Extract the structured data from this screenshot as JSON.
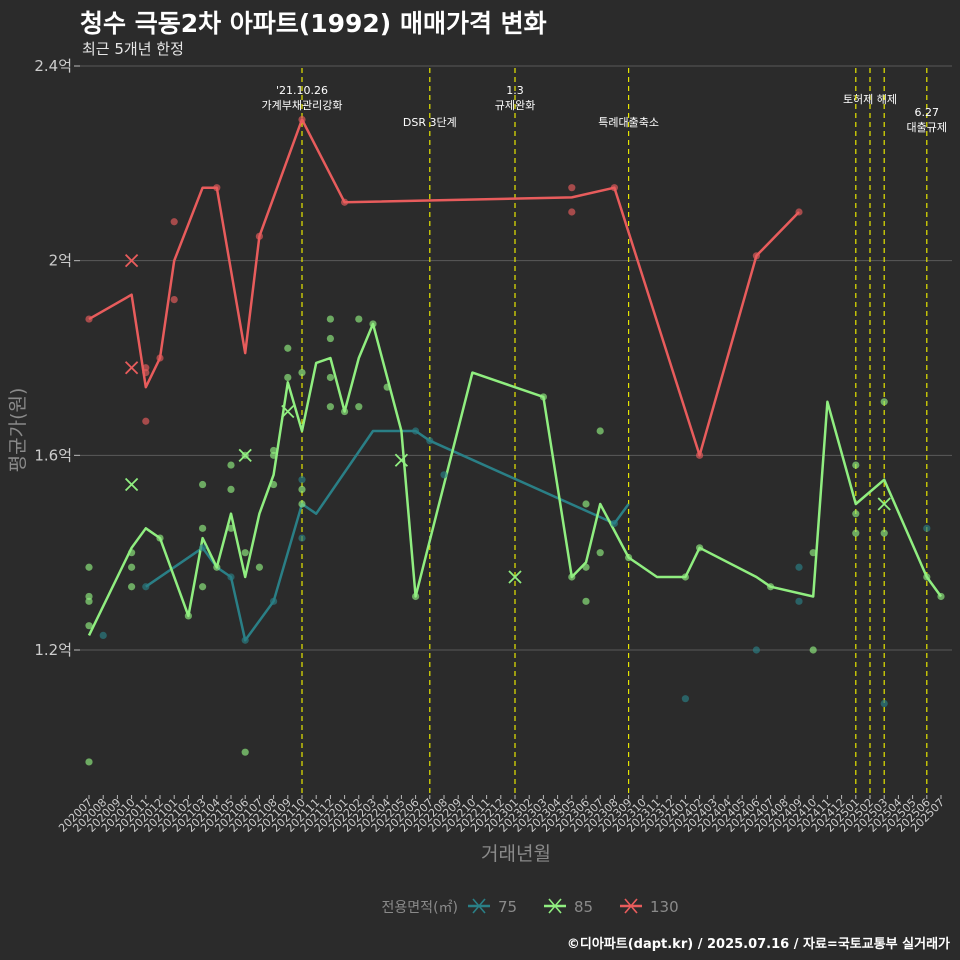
{
  "title": "청수 극동2차 아파트(1992) 매매가격 변화",
  "subtitle": "최근 5개년 한정",
  "caption": "©디아파트(dapt.kr) / 2025.07.16 / 자료=국토교통부 실거래가",
  "chart_data": {
    "type": "line",
    "xlabel": "거래년월",
    "ylabel": "평균가(원)",
    "legend_title": "전용면적(㎡)",
    "legend_position": "bottom",
    "grid": true,
    "ylim": [
      0.9,
      2.4
    ],
    "y_ticks": [
      1.2,
      1.6,
      2.0,
      2.4
    ],
    "y_tick_labels": [
      "1.2억",
      "1.6억",
      "2억",
      "2.4억"
    ],
    "categories": [
      "202007",
      "202008",
      "202009",
      "202010",
      "202011",
      "202012",
      "202101",
      "202102",
      "202103",
      "202104",
      "202105",
      "202106",
      "202107",
      "202108",
      "202109",
      "202110",
      "202111",
      "202112",
      "202201",
      "202202",
      "202203",
      "202204",
      "202205",
      "202206",
      "202207",
      "202208",
      "202209",
      "202210",
      "202211",
      "202212",
      "202301",
      "202302",
      "202303",
      "202304",
      "202305",
      "202306",
      "202307",
      "202308",
      "202309",
      "202310",
      "202311",
      "202312",
      "202401",
      "202402",
      "202403",
      "202404",
      "202405",
      "202406",
      "202407",
      "202408",
      "202409",
      "202410",
      "202411",
      "202412",
      "202501",
      "202502",
      "202503",
      "202504",
      "202505",
      "202506",
      "202507"
    ],
    "colors": {
      "75": "#2a7f86",
      "85": "#90ee80",
      "130": "#e85c5c",
      "event": "#e6e600",
      "grid": "#5a5a5a",
      "text": "#cccccc",
      "axis_title": "#8a8a8a"
    },
    "series": [
      {
        "name": "75",
        "color": "#2a7f86",
        "line": [
          [
            "202011",
            1.33
          ],
          [
            "202103",
            1.41
          ],
          [
            "202104",
            1.37
          ],
          [
            "202105",
            1.35
          ],
          [
            "202106",
            1.22
          ],
          [
            "202108",
            1.3
          ],
          [
            "202110",
            1.5
          ],
          [
            "202111",
            1.48
          ],
          [
            "202203",
            1.65
          ],
          [
            "202206",
            1.65
          ],
          [
            "202207",
            1.63
          ],
          [
            "202308",
            1.46
          ],
          [
            "202309",
            1.5
          ]
        ],
        "points": [
          [
            "202008",
            1.23
          ],
          [
            "202011",
            1.33
          ],
          [
            "202103",
            1.41
          ],
          [
            "202105",
            1.35
          ],
          [
            "202106",
            1.22
          ],
          [
            "202108",
            1.3
          ],
          [
            "202110",
            1.55
          ],
          [
            "202110",
            1.43
          ],
          [
            "202206",
            1.65
          ],
          [
            "202207",
            1.63
          ],
          [
            "202208",
            1.56
          ],
          [
            "202308",
            1.46
          ],
          [
            "202409",
            1.37
          ],
          [
            "202409",
            1.3
          ],
          [
            "202406",
            1.2
          ],
          [
            "202401",
            1.1
          ],
          [
            "202503",
            1.09
          ],
          [
            "202506",
            1.45
          ]
        ],
        "cross_points": []
      },
      {
        "name": "85",
        "color": "#90ee80",
        "line": [
          [
            "202007",
            1.23
          ],
          [
            "202010",
            1.41
          ],
          [
            "202011",
            1.45
          ],
          [
            "202012",
            1.43
          ],
          [
            "202102",
            1.27
          ],
          [
            "202103",
            1.43
          ],
          [
            "202104",
            1.37
          ],
          [
            "202105",
            1.48
          ],
          [
            "202106",
            1.35
          ],
          [
            "202107",
            1.48
          ],
          [
            "202108",
            1.56
          ],
          [
            "202109",
            1.75
          ],
          [
            "202110",
            1.65
          ],
          [
            "202111",
            1.79
          ],
          [
            "202112",
            1.8
          ],
          [
            "202201",
            1.69
          ],
          [
            "202202",
            1.8
          ],
          [
            "202203",
            1.87
          ],
          [
            "202205",
            1.65
          ],
          [
            "202206",
            1.31
          ],
          [
            "202210",
            1.77
          ],
          [
            "202303",
            1.72
          ],
          [
            "202305",
            1.35
          ],
          [
            "202306",
            1.38
          ],
          [
            "202307",
            1.5
          ],
          [
            "202309",
            1.39
          ],
          [
            "202311",
            1.35
          ],
          [
            "202313",
            1.35
          ],
          [
            "202314",
            1.41
          ],
          [
            "202318",
            1.35
          ],
          [
            "202319",
            1.33
          ],
          [
            "202322",
            1.31
          ],
          [
            "202323",
            1.71
          ],
          [
            "202501",
            1.5
          ],
          [
            "202503",
            1.55
          ],
          [
            "202506",
            1.35
          ],
          [
            "202507",
            1.31
          ]
        ],
        "points": [
          [
            "202007",
            1.37
          ],
          [
            "202007",
            1.31
          ],
          [
            "202007",
            1.3
          ],
          [
            "202007",
            1.25
          ],
          [
            "202007",
            0.97
          ],
          [
            "202010",
            1.4
          ],
          [
            "202010",
            1.37
          ],
          [
            "202010",
            1.33
          ],
          [
            "202012",
            1.43
          ],
          [
            "202102",
            1.27
          ],
          [
            "202103",
            1.45
          ],
          [
            "202103",
            1.54
          ],
          [
            "202103",
            1.33
          ],
          [
            "202104",
            1.37
          ],
          [
            "202105",
            1.58
          ],
          [
            "202105",
            1.53
          ],
          [
            "202105",
            1.45
          ],
          [
            "202106",
            1.4
          ],
          [
            "202106",
            1.6
          ],
          [
            "202106",
            0.99
          ],
          [
            "202107",
            1.37
          ],
          [
            "202108",
            1.6
          ],
          [
            "202108",
            1.54
          ],
          [
            "202108",
            1.61
          ],
          [
            "202109",
            1.76
          ],
          [
            "202109",
            1.82
          ],
          [
            "202110",
            1.77
          ],
          [
            "202110",
            1.53
          ],
          [
            "202110",
            1.5
          ],
          [
            "202112",
            1.88
          ],
          [
            "202112",
            1.84
          ],
          [
            "202112",
            1.76
          ],
          [
            "202112",
            1.7
          ],
          [
            "202201",
            1.69
          ],
          [
            "202202",
            1.88
          ],
          [
            "202202",
            1.7
          ],
          [
            "202203",
            1.87
          ],
          [
            "202204",
            1.74
          ],
          [
            "202206",
            1.31
          ],
          [
            "202303",
            1.72
          ],
          [
            "202305",
            1.35
          ],
          [
            "202306",
            1.5
          ],
          [
            "202306",
            1.37
          ],
          [
            "202306",
            1.3
          ],
          [
            "202307",
            1.65
          ],
          [
            "202307",
            1.4
          ],
          [
            "202309",
            1.39
          ],
          [
            "202313",
            1.35
          ],
          [
            "202314",
            1.41
          ],
          [
            "202319",
            1.33
          ],
          [
            "202322",
            1.2
          ],
          [
            "202322",
            1.4
          ],
          [
            "202501",
            1.58
          ],
          [
            "202501",
            1.48
          ],
          [
            "202501",
            1.44
          ],
          [
            "202503",
            1.71
          ],
          [
            "202503",
            1.44
          ],
          [
            "202506",
            1.35
          ],
          [
            "202507",
            1.31
          ]
        ],
        "cross_points": [
          [
            "202010",
            1.54
          ],
          [
            "202106",
            1.6
          ],
          [
            "202109",
            1.69
          ],
          [
            "202205",
            1.59
          ],
          [
            "202301",
            1.35
          ],
          [
            "202503",
            1.5
          ]
        ]
      },
      {
        "name": "130",
        "color": "#e85c5c",
        "line": [
          [
            "202007",
            1.88
          ],
          [
            "202010",
            1.93
          ],
          [
            "202011",
            1.74
          ],
          [
            "202012",
            1.8
          ],
          [
            "202101",
            2.0
          ],
          [
            "202103",
            2.15
          ],
          [
            "202104",
            2.15
          ],
          [
            "202106",
            1.81
          ],
          [
            "202107",
            2.05
          ],
          [
            "202110",
            2.29
          ],
          [
            "202113",
            2.12
          ],
          [
            "202305",
            2.13
          ],
          [
            "202308",
            2.15
          ],
          [
            "202402",
            1.6
          ],
          [
            "202406",
            2.01
          ],
          [
            "202409",
            2.1
          ]
        ],
        "points": [
          [
            "202007",
            1.88
          ],
          [
            "202011",
            1.78
          ],
          [
            "202011",
            1.77
          ],
          [
            "202011",
            1.67
          ],
          [
            "202012",
            1.8
          ],
          [
            "202101",
            2.08
          ],
          [
            "202101",
            1.92
          ],
          [
            "202104",
            2.15
          ],
          [
            "202107",
            2.05
          ],
          [
            "202110",
            2.29
          ],
          [
            "202113",
            2.12
          ],
          [
            "202305",
            2.15
          ],
          [
            "202305",
            2.1
          ],
          [
            "202308",
            2.15
          ],
          [
            "202402",
            1.6
          ],
          [
            "202406",
            2.01
          ],
          [
            "202409",
            2.1
          ]
        ],
        "cross_points": [
          [
            "202010",
            2.0
          ],
          [
            "202010",
            1.78
          ]
        ]
      }
    ],
    "events": [
      {
        "at": "202110",
        "lines": [
          "'21.10.26",
          "가계부채관리강화"
        ],
        "row": 1
      },
      {
        "at": "202207",
        "lines": [
          "DSR 3단계"
        ],
        "row": 3
      },
      {
        "at": "202301",
        "lines": [
          "1.3",
          "규제완화"
        ],
        "row": 1
      },
      {
        "at": "202309",
        "lines": [
          "특례대출축소"
        ],
        "row": 3
      },
      {
        "at": "202502",
        "lines": [
          "토허제 해제"
        ],
        "row": 2
      },
      {
        "at": "202503",
        "lines": [],
        "row": 0
      },
      {
        "at": "202506",
        "lines": [
          "6.27",
          "대출규제"
        ],
        "row": 4
      },
      {
        "at": "202501",
        "lines": [],
        "row": 0
      }
    ]
  }
}
